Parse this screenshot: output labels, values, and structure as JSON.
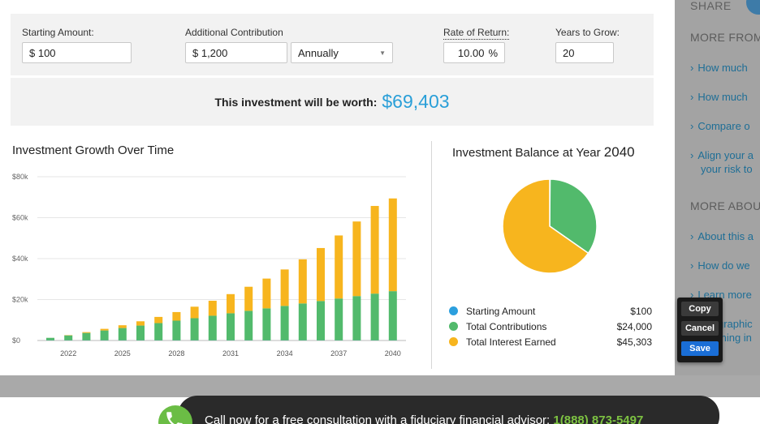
{
  "calculator": {
    "starting_amount": {
      "label": "Starting Amount:",
      "value": "$ 100"
    },
    "additional_contribution": {
      "label": "Additional Contribution",
      "value": "$ 1,200",
      "frequency": "Annually"
    },
    "rate_of_return": {
      "label": "Rate of Return:",
      "value": "10.00",
      "unit": "%"
    },
    "years_to_grow": {
      "label": "Years to Grow:",
      "value": "20"
    },
    "result": {
      "label": "This investment will be worth:",
      "value": "$69,403"
    }
  },
  "growth_chart": {
    "title": "Investment Growth Over Time"
  },
  "balance_chart": {
    "title": "Investment Balance at Year",
    "year": "2040"
  },
  "legend": [
    {
      "label": "Starting Amount",
      "value": "$100",
      "color": "#2b9fde"
    },
    {
      "label": "Total Contributions",
      "value": "$24,000",
      "color": "#52ba6c"
    },
    {
      "label": "Total Interest Earned",
      "value": "$45,303",
      "color": "#f7b51e"
    }
  ],
  "chart_data": [
    {
      "type": "bar",
      "stacked": true,
      "categories": [
        "2021",
        "2022",
        "2023",
        "2024",
        "2025",
        "2026",
        "2027",
        "2028",
        "2029",
        "2030",
        "2031",
        "2032",
        "2033",
        "2034",
        "2035",
        "2036",
        "2037",
        "2038",
        "2039",
        "2040"
      ],
      "x_tick_labels": [
        "2022",
        "2025",
        "2028",
        "2031",
        "2034",
        "2037",
        "2040"
      ],
      "y_tick_labels": [
        "$0",
        "$20k",
        "$40k",
        "$60k",
        "$80k"
      ],
      "ylim": [
        0,
        80000
      ],
      "grid": true,
      "series": [
        {
          "name": "Starting Amount",
          "color": "#2b9fde",
          "values": [
            100,
            100,
            100,
            100,
            100,
            100,
            100,
            100,
            100,
            100,
            100,
            100,
            100,
            100,
            100,
            100,
            100,
            100,
            100,
            100
          ]
        },
        {
          "name": "Total Contributions",
          "color": "#52ba6c",
          "values": [
            1200,
            2400,
            3600,
            4800,
            6000,
            7200,
            8400,
            9600,
            10800,
            12000,
            13200,
            14400,
            15600,
            16800,
            18000,
            19200,
            20400,
            21600,
            22800,
            24000
          ]
        },
        {
          "name": "Total Interest Earned",
          "color": "#f7b51e",
          "values": [
            10,
            141,
            398,
            795,
            1351,
            2087,
            3024,
            4190,
            5612,
            7323,
            9357,
            11753,
            14553,
            17804,
            21558,
            25873,
            30810,
            36437,
            42826,
            45303
          ]
        }
      ]
    },
    {
      "type": "pie",
      "labels": [
        "Starting Amount",
        "Total Contributions",
        "Total Interest Earned"
      ],
      "values": [
        100,
        24000,
        45303
      ],
      "colors": [
        "#2b9fde",
        "#52ba6c",
        "#f7b51e"
      ]
    }
  ],
  "sidebar": {
    "share_label": "SHARE",
    "more_from_heading": "MORE FROM",
    "more_from_links": [
      "How much",
      "How much",
      "Compare o",
      "Align your a",
      "your risk to"
    ],
    "more_about_heading": "MORE ABOU",
    "more_about_links": [
      "About this a",
      "How do we",
      "Learn more",
      "graphic",
      "ming in"
    ]
  },
  "popup": {
    "copy": "Copy",
    "cancel": "Cancel",
    "save": "Save"
  },
  "banner": {
    "text": "Call now for a free consultation with a fiduciary financial advisor:",
    "phone": "1(888) 873-5497"
  }
}
